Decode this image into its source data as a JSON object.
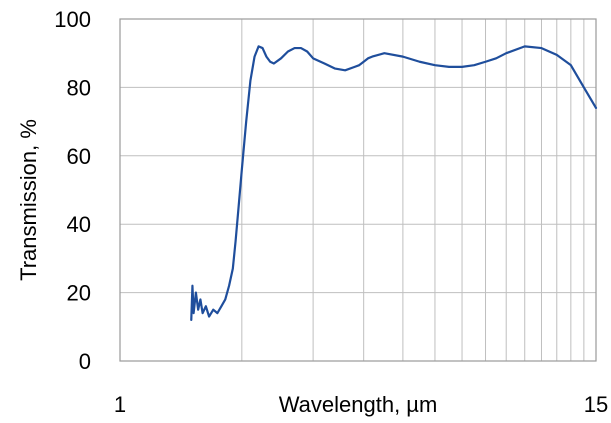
{
  "chart_data": {
    "type": "line",
    "title": "",
    "xlabel": "Wavelength, µm",
    "ylabel": "Transmission, %",
    "x_scale": "log",
    "xlim": [
      1,
      15
    ],
    "ylim": [
      0,
      100
    ],
    "x_tick_labels": [
      "1",
      "15"
    ],
    "y_tick_labels": [
      "0",
      "20",
      "40",
      "60",
      "80",
      "100"
    ],
    "y_ticks": [
      0,
      20,
      40,
      60,
      80,
      100
    ],
    "x_tick_values": [
      1,
      15
    ],
    "x_gridlines": [
      1,
      2,
      3,
      4,
      5,
      6,
      7,
      8,
      9,
      10,
      11,
      12,
      13,
      14,
      15
    ],
    "y_gridlines": [
      0,
      20,
      40,
      60,
      80,
      100
    ],
    "grid": true,
    "legend": "none",
    "colors": {
      "series": "#1f4e9c",
      "grid": "#bfbfbf",
      "frame": "#9a9a9a"
    },
    "series": [
      {
        "x": [
          1.5,
          1.51,
          1.52,
          1.54,
          1.56,
          1.58,
          1.6,
          1.63,
          1.66,
          1.7,
          1.74,
          1.78,
          1.82,
          1.86,
          1.9,
          1.93,
          1.96,
          2.0,
          2.05,
          2.1,
          2.15,
          2.2,
          2.25,
          2.3,
          2.35,
          2.4,
          2.5,
          2.6,
          2.7,
          2.8,
          2.9,
          3.0,
          3.2,
          3.4,
          3.6,
          3.8,
          3.9,
          4.0,
          4.1,
          4.2,
          4.5,
          5.0,
          5.5,
          6.0,
          6.5,
          7.0,
          7.5,
          8.0,
          8.5,
          9.0,
          10.0,
          11.0,
          12.0,
          13.0,
          14.0,
          15.0
        ],
        "y": [
          12,
          22,
          14,
          20,
          15,
          18,
          14,
          16,
          13,
          15,
          14,
          16,
          18,
          22,
          27,
          35,
          44,
          56,
          70,
          82,
          89,
          92,
          91.5,
          89,
          87.5,
          87,
          88.5,
          90.5,
          91.5,
          91.5,
          90.5,
          88.5,
          87,
          85.5,
          85,
          86,
          86.5,
          87.5,
          88.5,
          89,
          90,
          89,
          87.5,
          86.5,
          86,
          86,
          86.5,
          87.5,
          88.5,
          90,
          92,
          91.5,
          89.5,
          86.5,
          80,
          74
        ]
      }
    ]
  }
}
